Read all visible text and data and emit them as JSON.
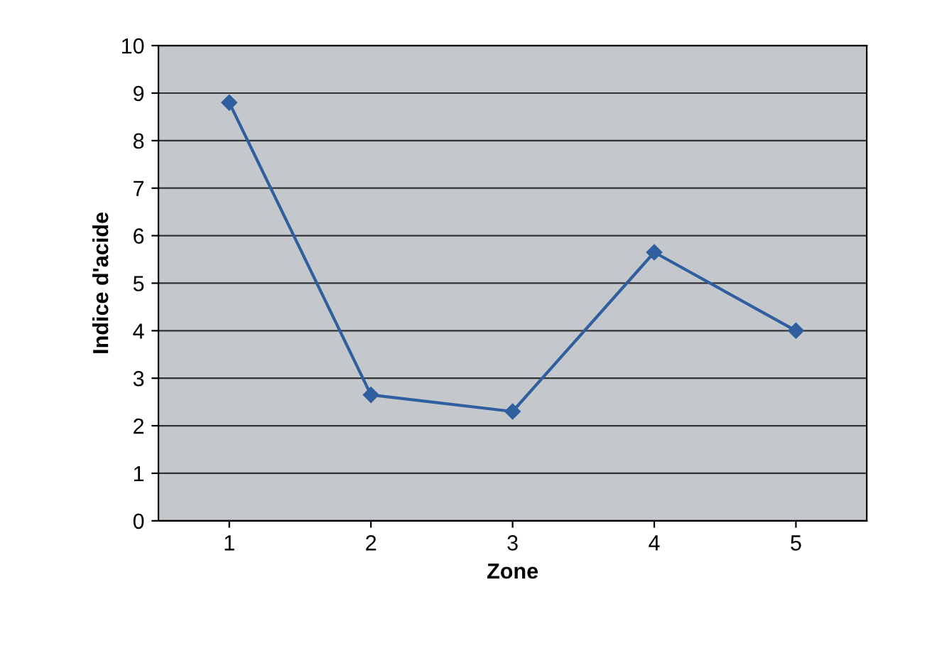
{
  "chart_data": {
    "type": "line",
    "xlabel": "Zone",
    "ylabel": "Indice d'acide",
    "categories": [
      "1",
      "2",
      "3",
      "4",
      "5"
    ],
    "series": [
      {
        "color": "#2f5f9e",
        "values": [
          8.8,
          2.65,
          2.3,
          5.65,
          4.0
        ]
      }
    ],
    "ylim": [
      0,
      10
    ],
    "yticks": [
      0,
      1,
      2,
      3,
      4,
      5,
      6,
      7,
      8,
      9,
      10
    ],
    "grid": "y",
    "marker": "diamond",
    "line_style": "solid"
  }
}
